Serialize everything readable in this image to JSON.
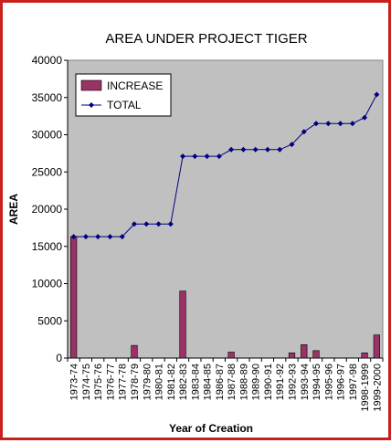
{
  "chart_data": {
    "type": "bar",
    "title": "AREA UNDER PROJECT TIGER",
    "xlabel": "Year of Creation",
    "ylabel": "AREA",
    "ylim": [
      0,
      40000
    ],
    "yticks": [
      0,
      5000,
      10000,
      15000,
      20000,
      25000,
      30000,
      35000,
      40000
    ],
    "grid": false,
    "legend_position": "top-left",
    "plot_background": "#c0c0c0",
    "categories": [
      "1973-74",
      "1974-75",
      "1975-76",
      "1976-77",
      "1977-78",
      "1978-79",
      "1979-80",
      "1980-81",
      "1981-82",
      "1982-83",
      "1983-84",
      "1984-85",
      "1986-87",
      "1987-88",
      "1988-89",
      "1989-90",
      "1990-91",
      "1991-92",
      "1992-93",
      "1993-94",
      "1994-95",
      "1995-96",
      "1996-97",
      "1997-98",
      "1998-1999",
      "1999-2000"
    ],
    "series": [
      {
        "name": "INCREASE",
        "kind": "bar",
        "color": "#993366",
        "values": [
          16300,
          0,
          0,
          0,
          0,
          1700,
          0,
          0,
          0,
          9000,
          0,
          0,
          0,
          800,
          0,
          0,
          0,
          0,
          700,
          1800,
          1000,
          0,
          0,
          0,
          700,
          3100
        ]
      },
      {
        "name": "TOTAL",
        "kind": "line",
        "color": "#000080",
        "values": [
          16300,
          16300,
          16300,
          16300,
          16300,
          18000,
          18000,
          18000,
          18000,
          27100,
          27100,
          27100,
          27100,
          28000,
          28000,
          28000,
          28000,
          28000,
          28700,
          30400,
          31500,
          31500,
          31500,
          31500,
          32300,
          35400
        ]
      }
    ]
  }
}
